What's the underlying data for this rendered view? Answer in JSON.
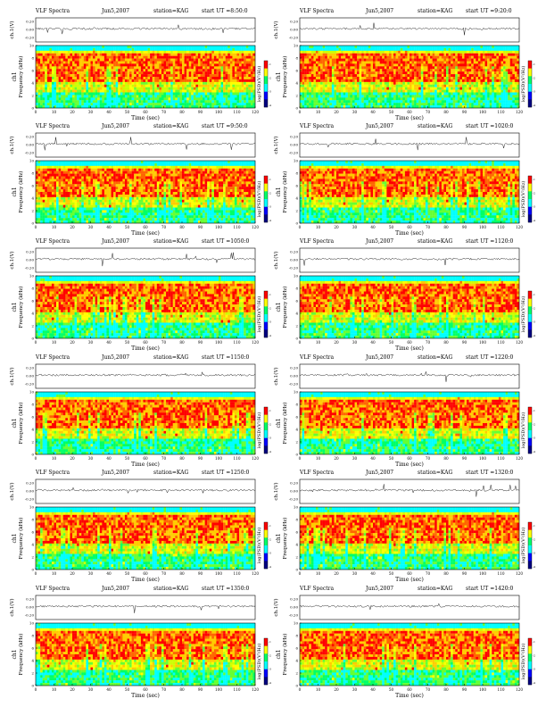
{
  "chart_data": {
    "type": "heatmap",
    "ylim": [
      0,
      10
    ],
    "xlim": [
      0,
      120
    ],
    "x_ticks": [
      "0",
      "10",
      "20",
      "30",
      "40",
      "50",
      "60",
      "70",
      "80",
      "90",
      "100",
      "110",
      "120"
    ],
    "y_ticks": [
      "0",
      "2",
      "4",
      "6",
      "8",
      "10"
    ],
    "trace_ticks": [
      "0.20",
      "0.00",
      "-0.20"
    ],
    "colorbar_ticks": [
      "-1",
      "-2",
      "-3",
      "-4"
    ],
    "colorbar_colors": [
      "#ff0000",
      "#ffff00",
      "#00ff66",
      "#00ffff",
      "#0000ff",
      "#000080"
    ],
    "panels": [
      {
        "title": "VLF Spectra",
        "date": "Jun5,2007",
        "station": "station=KAG",
        "ut": "start  UT =8:50:0",
        "xlabel": "Time (sec)",
        "ylabel": "Frequency (kHz)",
        "channel": "ch1",
        "trace_label": "ch.1(V)",
        "colorbar_label": "log(PSD)(V²/Hz)"
      },
      {
        "title": "VLF Spectra",
        "date": "Jun5,2007",
        "station": "station=KAG",
        "ut": "start  UT =9:20:0",
        "xlabel": "Time (sec)",
        "ylabel": "Frequency (kHz)",
        "channel": "ch1",
        "trace_label": "ch.1(V)",
        "colorbar_label": "log(PSD)(V²/Hz)"
      },
      {
        "title": "VLF Spectra",
        "date": "Jun5,2007",
        "station": "station=KAG",
        "ut": "start  UT =9:50:0",
        "xlabel": "Time (sec)",
        "ylabel": "Frequency (kHz)",
        "channel": "ch1",
        "trace_label": "ch.1(V)",
        "colorbar_label": "log(PSD)(V²/Hz)"
      },
      {
        "title": "VLF Spectra",
        "date": "Jun5,2007",
        "station": "station=KAG",
        "ut": "start  UT =1020:0",
        "xlabel": "Time (sec)",
        "ylabel": "Frequency (kHz)",
        "channel": "ch1",
        "trace_label": "ch.1(V)",
        "colorbar_label": "log(PSD)(V²/Hz)"
      },
      {
        "title": "VLF Spectra",
        "date": "Jun5,2007",
        "station": "station=KAG",
        "ut": "start  UT =1050:0",
        "xlabel": "Time (sec)",
        "ylabel": "Frequency (kHz)",
        "channel": "ch1",
        "trace_label": "ch.1(V)",
        "colorbar_label": "log(PSD)(V²/Hz)"
      },
      {
        "title": "VLF Spectra",
        "date": "Jun5,2007",
        "station": "station=KAG",
        "ut": "start  UT =1120:0",
        "xlabel": "Time (sec)",
        "ylabel": "Frequency (kHz)",
        "channel": "ch1",
        "trace_label": "ch.1(V)",
        "colorbar_label": "log(PSD)(V²/Hz)"
      },
      {
        "title": "VLF Spectra",
        "date": "Jun5,2007",
        "station": "station=KAG",
        "ut": "start  UT =1150:0",
        "xlabel": "Time (sec)",
        "ylabel": "Frequency (kHz)",
        "channel": "ch1",
        "trace_label": "ch.1(V)",
        "colorbar_label": "log(PSD)(V²/Hz)"
      },
      {
        "title": "VLF Spectra",
        "date": "Jun5,2007",
        "station": "station=KAG",
        "ut": "start  UT =1220:0",
        "xlabel": "Time (sec)",
        "ylabel": "Frequency (kHz)",
        "channel": "ch1",
        "trace_label": "ch.1(V)",
        "colorbar_label": "log(PSD)(V²/Hz)"
      },
      {
        "title": "VLF Spectra",
        "date": "Jun5,2007",
        "station": "station=KAG",
        "ut": "start  UT =1250:0",
        "xlabel": "Time (sec)",
        "ylabel": "Frequency (kHz)",
        "channel": "ch1",
        "trace_label": "ch.1(V)",
        "colorbar_label": "log(PSD)(V²/Hz)"
      },
      {
        "title": "VLF Spectra",
        "date": "Jun5,2007",
        "station": "station=KAG",
        "ut": "start  UT =1320:0",
        "xlabel": "Time (sec)",
        "ylabel": "Frequency (kHz)",
        "channel": "ch1",
        "trace_label": "ch.1(V)",
        "colorbar_label": "log(PSD)(V²/Hz)"
      },
      {
        "title": "VLF Spectra",
        "date": "Jun5,2007",
        "station": "station=KAG",
        "ut": "start  UT =1350:0",
        "xlabel": "Time (sec)",
        "ylabel": "Frequency (kHz)",
        "channel": "ch1",
        "trace_label": "ch.1(V)",
        "colorbar_label": "log(PSD)(V²/Hz)"
      },
      {
        "title": "VLF Spectra",
        "date": "Jun5,2007",
        "station": "station=KAG",
        "ut": "start  UT =1420:0",
        "xlabel": "Time (sec)",
        "ylabel": "Frequency (kHz)",
        "channel": "ch1",
        "trace_label": "ch.1(V)",
        "colorbar_label": "log(PSD)(V²/Hz)"
      }
    ]
  }
}
